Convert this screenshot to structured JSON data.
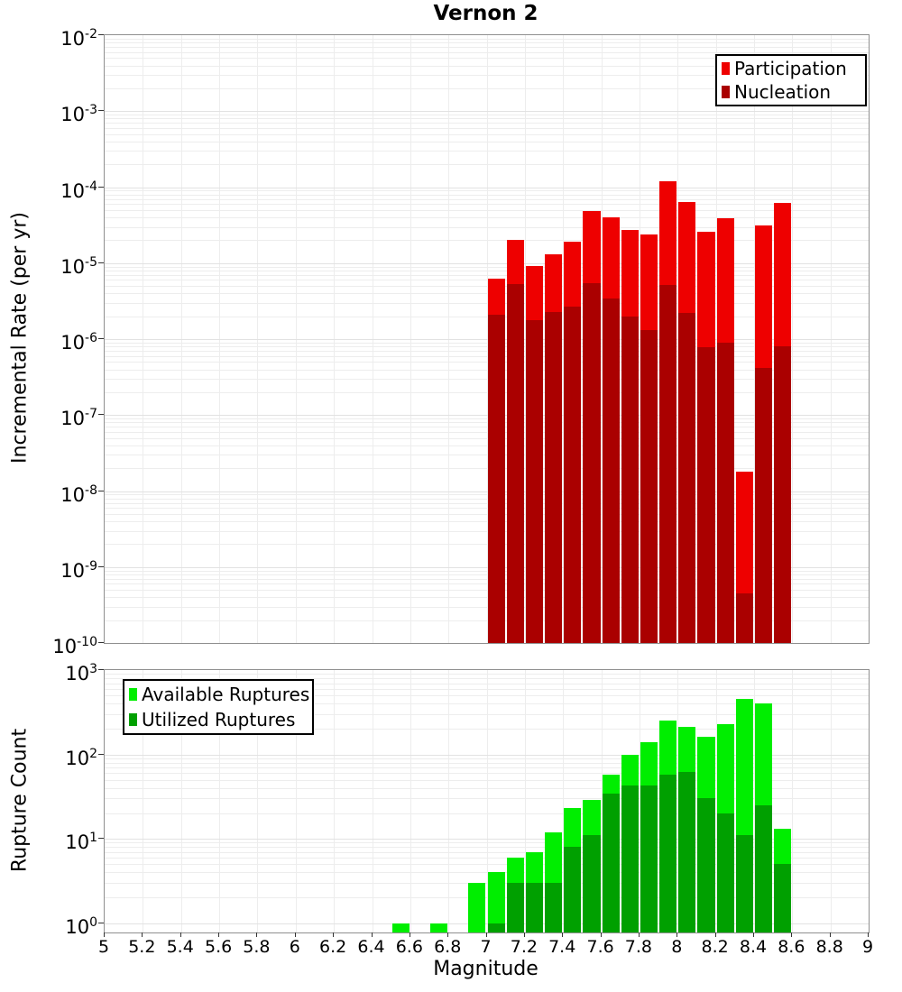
{
  "figure": {
    "title": "Vernon 2",
    "xlabel": "Magnitude",
    "top_ylabel": "Incremental Rate (per yr)",
    "bottom_ylabel": "Rupture Count"
  },
  "chart_data": [
    {
      "type": "bar",
      "subplot": "top",
      "title": "Vernon 2",
      "xlabel": "Magnitude",
      "ylabel": "Incremental Rate (per yr)",
      "y_scale": "log",
      "ylim": [
        1e-10,
        0.01
      ],
      "xlim": [
        5,
        9
      ],
      "bin_width": 0.1,
      "grid": true,
      "legend_position": "top-right",
      "x_ticks": [
        "5",
        "5.2",
        "5.4",
        "5.6",
        "5.8",
        "6",
        "6.2",
        "6.4",
        "6.6",
        "6.8",
        "7",
        "7.2",
        "7.4",
        "7.6",
        "7.8",
        "8",
        "8.2",
        "8.4",
        "8.6",
        "8.8",
        "9"
      ],
      "y_tick_exponents": [
        -2,
        -3,
        -4,
        -5,
        -6,
        -7,
        -8,
        -9,
        -10
      ],
      "categories": [
        7.0,
        7.1,
        7.2,
        7.3,
        7.4,
        7.5,
        7.6,
        7.7,
        7.8,
        7.9,
        8.0,
        8.1,
        8.2,
        8.3,
        8.4,
        8.5
      ],
      "series": [
        {
          "name": "Participation",
          "color": "#ee0000",
          "values": [
            6.3e-06,
            2e-05,
            9.2e-06,
            1.3e-05,
            1.9e-05,
            4.9e-05,
            4e-05,
            2.7e-05,
            2.4e-05,
            0.00012,
            6.3e-05,
            2.6e-05,
            3.9e-05,
            1.8e-08,
            3.1e-05,
            6.2e-05
          ]
        },
        {
          "name": "Nucleation",
          "color": "#aa0000",
          "values": [
            2.1e-06,
            5.3e-06,
            1.8e-06,
            2.3e-06,
            2.7e-06,
            5.4e-06,
            3.4e-06,
            2e-06,
            1.3e-06,
            5.2e-06,
            2.2e-06,
            7.8e-07,
            9e-07,
            4.5e-10,
            4.2e-07,
            8e-07
          ]
        }
      ]
    },
    {
      "type": "bar",
      "subplot": "bottom",
      "title": "",
      "xlabel": "Magnitude",
      "ylabel": "Rupture Count",
      "y_scale": "log",
      "ylim": [
        1,
        1000
      ],
      "xlim": [
        5,
        9
      ],
      "bin_width": 0.1,
      "grid": true,
      "legend_position": "top-left",
      "y_tick_exponents": [
        3,
        2,
        1,
        0
      ],
      "categories": [
        6.5,
        6.6,
        6.7,
        6.8,
        6.9,
        7.0,
        7.1,
        7.2,
        7.3,
        7.4,
        7.5,
        7.6,
        7.7,
        7.8,
        7.9,
        8.0,
        8.1,
        8.2,
        8.3,
        8.4,
        8.5
      ],
      "series": [
        {
          "name": "Available Ruptures",
          "color": "#00ee00",
          "values": [
            1,
            0,
            1,
            0,
            3,
            4,
            6,
            7,
            12,
            23,
            29,
            58,
            100,
            140,
            250,
            210,
            160,
            230,
            460,
            400,
            13
          ]
        },
        {
          "name": "Utilized Ruptures",
          "color": "#00a000",
          "values": [
            0,
            0,
            0,
            0,
            0,
            1,
            3,
            3,
            3,
            8,
            11,
            34,
            43,
            43,
            57,
            62,
            30,
            20,
            11,
            25,
            5
          ]
        }
      ]
    }
  ]
}
